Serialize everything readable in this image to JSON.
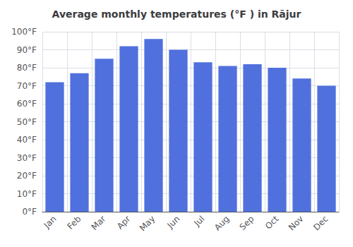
{
  "chart_data": {
    "type": "bar",
    "title": "Average monthly temperatures (°F ) in Rājur",
    "categories": [
      "Jan",
      "Feb",
      "Mar",
      "Apr",
      "May",
      "Jun",
      "Jul",
      "Aug",
      "Sep",
      "Oct",
      "Nov",
      "Dec"
    ],
    "values": [
      72,
      77,
      85,
      92,
      96,
      90,
      83,
      81,
      82,
      80,
      74,
      70
    ],
    "ylim": [
      0,
      100
    ],
    "yticks": [
      {
        "value": 0,
        "label": "0°F"
      },
      {
        "value": 10,
        "label": "10°F"
      },
      {
        "value": 20,
        "label": "20°F"
      },
      {
        "value": 30,
        "label": "30°F"
      },
      {
        "value": 40,
        "label": "40°F"
      },
      {
        "value": 50,
        "label": "50°F"
      },
      {
        "value": 60,
        "label": "60°F"
      },
      {
        "value": 70,
        "label": "70°F"
      },
      {
        "value": 80,
        "label": "80°F"
      },
      {
        "value": 90,
        "label": "90°F"
      },
      {
        "value": 100,
        "label": "100°F"
      }
    ],
    "grid": true
  }
}
